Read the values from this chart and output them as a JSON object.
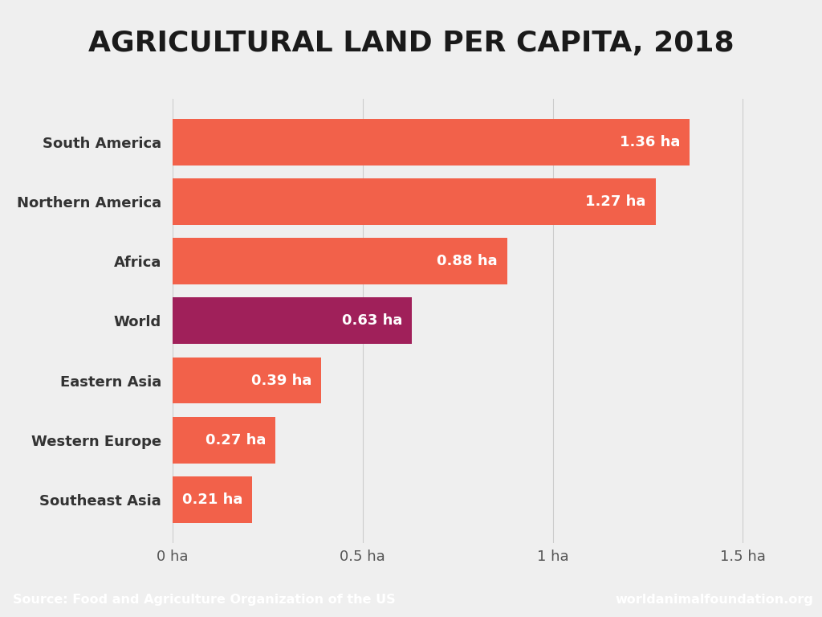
{
  "title": "AGRICULTURAL LAND PER CAPITA, 2018",
  "categories": [
    "South America",
    "Northern America",
    "Africa",
    "World",
    "Eastern Asia",
    "Western Europe",
    "Southeast Asia"
  ],
  "values": [
    1.36,
    1.27,
    0.88,
    0.63,
    0.39,
    0.27,
    0.21
  ],
  "bar_colors": [
    "#F2614A",
    "#F2614A",
    "#F2614A",
    "#A0205A",
    "#F2614A",
    "#F2614A",
    "#F2614A"
  ],
  "labels": [
    "1.36 ha",
    "1.27 ha",
    "0.88 ha",
    "0.63 ha",
    "0.39 ha",
    "0.27 ha",
    "0.21 ha"
  ],
  "xlim": [
    0,
    1.6
  ],
  "xticks": [
    0,
    0.5,
    1.0,
    1.5
  ],
  "xticklabels": [
    "0 ha",
    "0.5 ha",
    "1 ha",
    "1.5 ha"
  ],
  "background_color": "#EFEFEF",
  "source_text": "Source: Food and Agriculture Organization of the US",
  "website_text": "worldanimalfoundation.org",
  "footer_color": "#F2614A",
  "title_fontsize": 26,
  "label_fontsize": 13,
  "tick_fontsize": 13,
  "category_fontsize": 13,
  "bar_height": 0.78
}
